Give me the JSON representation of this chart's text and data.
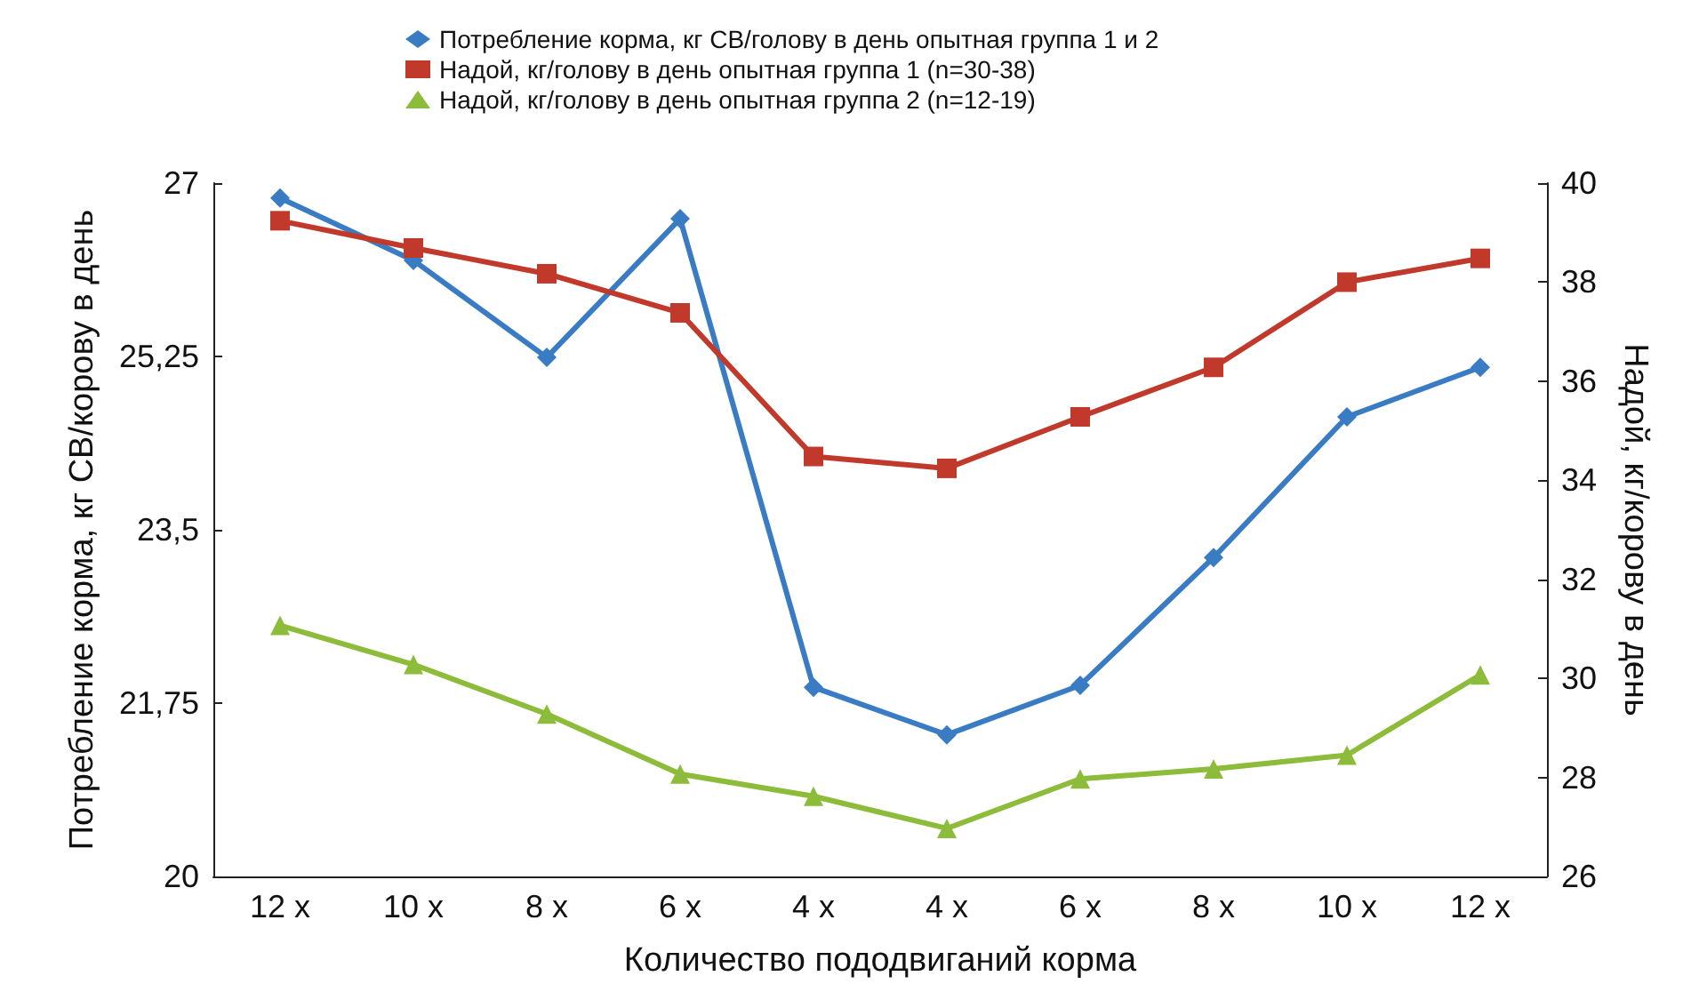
{
  "chart_data": {
    "type": "line",
    "xlabel": "Количество пододвиганий корма",
    "ylabel": "Потребление корма, кг СВ/корову в день",
    "y2label": "Надой, кг/корову в день",
    "categories": [
      "12 x",
      "10 x",
      "8 x",
      "6 x",
      "4 x",
      "4 x",
      "6 x",
      "8 x",
      "10 x",
      "12 x"
    ],
    "series": [
      {
        "name": "Потребление корма, кг СВ/голову в день опытная группа 1 и 2",
        "color": "#3a7cc4",
        "marker": "diamond",
        "values": [
          26.85,
          26.22,
          25.24,
          26.64,
          21.91,
          21.43,
          21.93,
          23.22,
          24.64,
          25.14
        ]
      },
      {
        "name": "Надой, кг/голову в день опытная группа 1 (n=30-38)",
        "color": "#c0392b",
        "marker": "square",
        "axis": "y2",
        "values": [
          39.24,
          38.69,
          38.17,
          37.38,
          34.48,
          34.24,
          35.28,
          36.28,
          38.0,
          38.48
        ]
      },
      {
        "name": "Надой, кг/голову в день опытная группа 2 (n=12-19)",
        "color": "#8dbb3a",
        "marker": "triangle",
        "axis": "y2",
        "values": [
          31.07,
          30.28,
          29.28,
          28.07,
          27.62,
          26.97,
          27.97,
          28.17,
          28.45,
          30.07
        ]
      }
    ],
    "ylim": [
      20,
      27
    ],
    "yticks": [
      20,
      {
        "value": 21.75,
        "label": "21,75"
      },
      {
        "value": 23.5,
        "label": "23,5"
      },
      {
        "value": 25.25,
        "label": "25,25"
      },
      27
    ],
    "y2lim": [
      26,
      40
    ],
    "y2ticks": [
      26,
      28,
      30,
      32,
      34,
      36,
      38,
      40
    ],
    "grid": false,
    "legend": "top",
    "line_style": "solid"
  }
}
